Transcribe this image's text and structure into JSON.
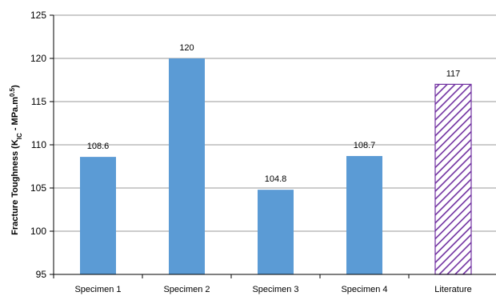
{
  "chart_data": {
    "type": "bar",
    "title": "",
    "xlabel": "",
    "ylabel": {
      "main": "Fracture Toughness (K",
      "sub": "IC",
      "mid": " - MPa.m",
      "sup": "0.5",
      "end": ")"
    },
    "ylim": [
      95,
      125
    ],
    "yticks": [
      95,
      100,
      105,
      110,
      115,
      120,
      125
    ],
    "grid": true,
    "categories": [
      "Specimen 1",
      "Specimen 2",
      "Specimen 3",
      "Specimen 4",
      "Literature"
    ],
    "values": [
      108.6,
      120,
      104.8,
      108.7,
      117
    ],
    "data_labels": [
      "108.6",
      "120",
      "104.8",
      "108.7",
      "117"
    ],
    "bar_styles": [
      "solid",
      "solid",
      "solid",
      "solid",
      "hatched"
    ],
    "colors": {
      "bar": "#5B9BD5",
      "hatch": "#7030A0",
      "grid": "#9a9a9a",
      "axis": "#000000"
    }
  }
}
